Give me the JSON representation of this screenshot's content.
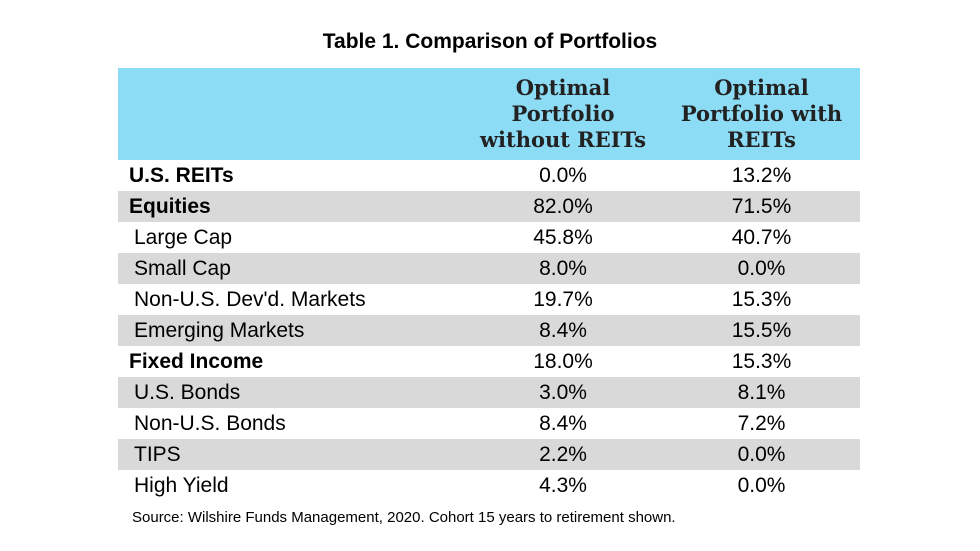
{
  "title": "Table 1. Comparison of Portfolios",
  "source": "Source: Wilshire Funds Management, 2020. Cohort 15 years to retirement shown.",
  "colors": {
    "header_bg": "#8ddcf6",
    "row_shade": "#d9d9d9"
  },
  "chart_data": {
    "type": "table",
    "title": "Table 1. Comparison of Portfolios",
    "columns": [
      "",
      "Optimal\nPortfolio\nwithout REITs",
      "Optimal\nPortfolio with\nREITs"
    ],
    "rows": [
      {
        "label": "U.S. REITs",
        "without": "0.0%",
        "with": "13.2%",
        "bold": true,
        "shaded": false
      },
      {
        "label": "Equities",
        "without": "82.0%",
        "with": "71.5%",
        "bold": true,
        "shaded": true
      },
      {
        "label": "Large Cap",
        "without": "45.8%",
        "with": "40.7%",
        "bold": false,
        "shaded": false
      },
      {
        "label": "Small Cap",
        "without": "8.0%",
        "with": "0.0%",
        "bold": false,
        "shaded": true
      },
      {
        "label": "Non-U.S. Dev'd. Markets",
        "without": "19.7%",
        "with": "15.3%",
        "bold": false,
        "shaded": false
      },
      {
        "label": "Emerging Markets",
        "without": "8.4%",
        "with": "15.5%",
        "bold": false,
        "shaded": true
      },
      {
        "label": "Fixed Income",
        "without": "18.0%",
        "with": "15.3%",
        "bold": true,
        "shaded": false
      },
      {
        "label": "U.S. Bonds",
        "without": "3.0%",
        "with": "8.1%",
        "bold": false,
        "shaded": true
      },
      {
        "label": "Non-U.S. Bonds",
        "without": "8.4%",
        "with": "7.2%",
        "bold": false,
        "shaded": false
      },
      {
        "label": "TIPS",
        "without": "2.2%",
        "with": "0.0%",
        "bold": false,
        "shaded": true
      },
      {
        "label": "High Yield",
        "without": "4.3%",
        "with": "0.0%",
        "bold": false,
        "shaded": false
      }
    ]
  }
}
